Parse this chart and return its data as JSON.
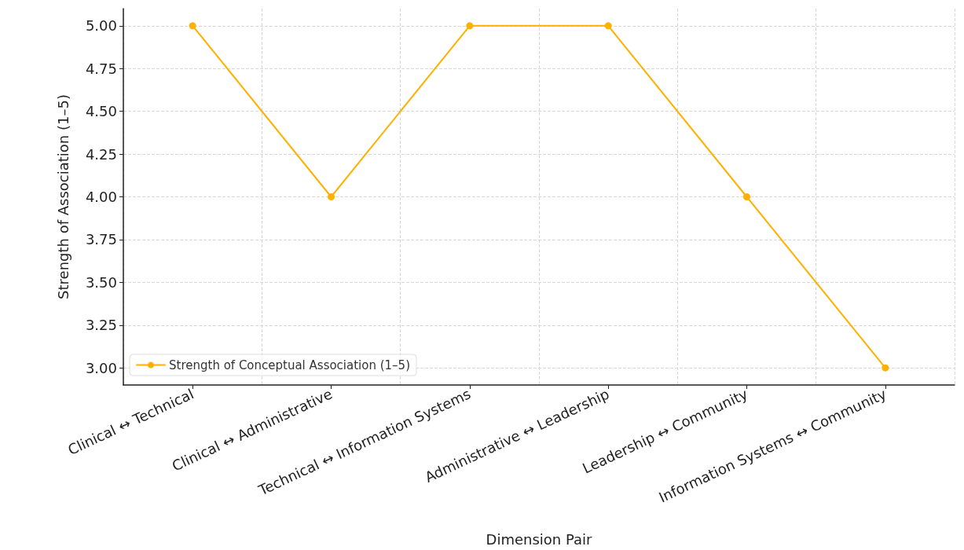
{
  "chart_data": {
    "type": "line",
    "xlabel": "Dimension Pair",
    "ylabel": "Strength of Association (1–5)",
    "categories": [
      "Clinical ↔ Technical",
      "Clinical ↔ Administrative",
      "Technical ↔ Information Systems",
      "Administrative ↔ Leadership",
      "Leadership ↔ Community",
      "Information Systems ↔ Community"
    ],
    "series": [
      {
        "name": "Strength of Conceptual Association (1–5)",
        "color": "#ffb000",
        "values": [
          5,
          4,
          5,
          5,
          4,
          3
        ]
      }
    ],
    "ylim": [
      2.9,
      5.1
    ],
    "yticks": [
      {
        "value": 3,
        "label": "3.00"
      },
      {
        "value": 3.25,
        "label": "3.25"
      },
      {
        "value": 3.5,
        "label": "3.50"
      },
      {
        "value": 3.75,
        "label": "3.75"
      },
      {
        "value": 4,
        "label": "4.00"
      },
      {
        "value": 4.25,
        "label": "4.25"
      },
      {
        "value": 4.5,
        "label": "4.50"
      },
      {
        "value": 4.75,
        "label": "4.75"
      },
      {
        "value": 5,
        "label": "5.00"
      }
    ],
    "grid": true,
    "legend": "bottom left",
    "marker": "circle",
    "line_style": "solid"
  }
}
